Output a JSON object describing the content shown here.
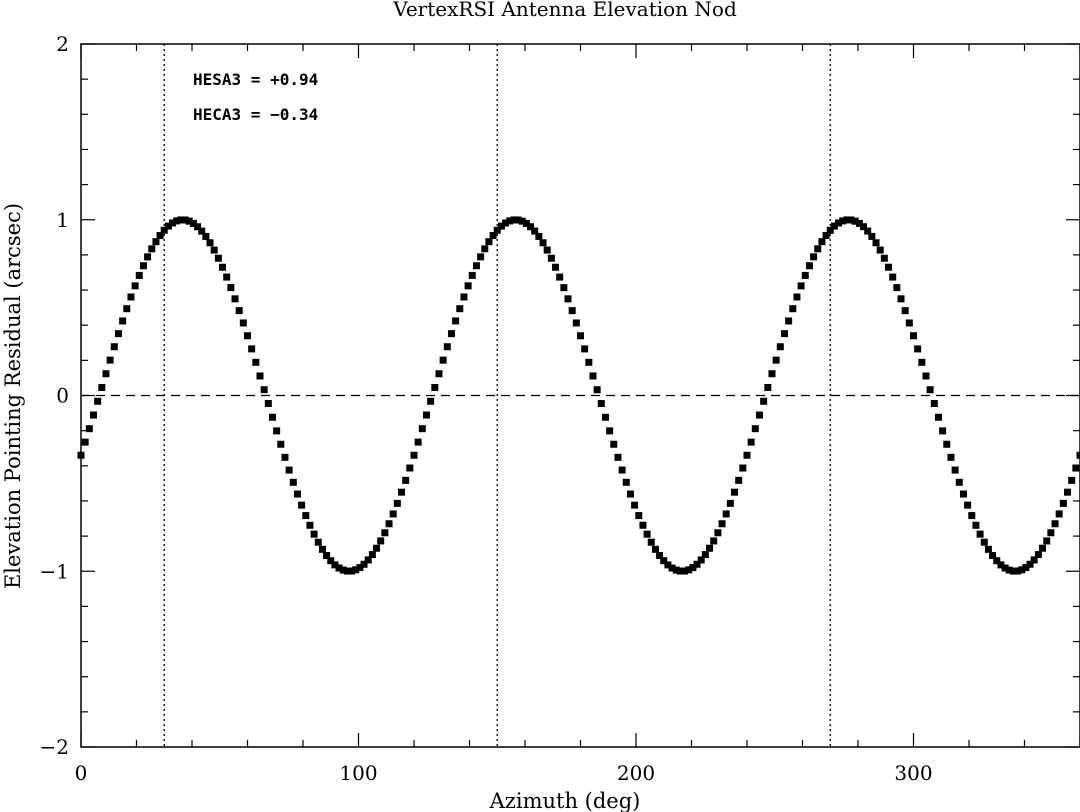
{
  "chart_data": {
    "type": "scatter",
    "title": "VertexRSI Antenna Elevation Nod",
    "xlabel": "Azimuth (deg)",
    "ylabel": "Elevation Pointing Residual (arcsec)",
    "xlim": [
      0,
      360
    ],
    "ylim": [
      -2,
      2
    ],
    "x_ticks": [
      0,
      100,
      200,
      300
    ],
    "x_tick_labels": [
      "0",
      "100",
      "200",
      "300"
    ],
    "y_ticks": [
      -2,
      -1,
      0,
      1,
      2
    ],
    "y_tick_labels": [
      "−2",
      "−1",
      "0",
      "1",
      "2"
    ],
    "grid": false,
    "zero_line": {
      "y": 0,
      "style": "dashed"
    },
    "vertical_lines": [
      {
        "x": 30,
        "style": "dotted"
      },
      {
        "x": 150,
        "style": "dotted"
      },
      {
        "x": 270,
        "style": "dotted"
      }
    ],
    "annotations": [
      "HESA3 = +0.94",
      "HECA3 = −0.34"
    ],
    "model": {
      "form": "y = HESA3*sin(3x) + HECA3*cos(3x)",
      "HESA3": 0.94,
      "HECA3": -0.34,
      "step_deg": 1.5
    },
    "marker": {
      "shape": "square",
      "color": "#000000"
    }
  }
}
